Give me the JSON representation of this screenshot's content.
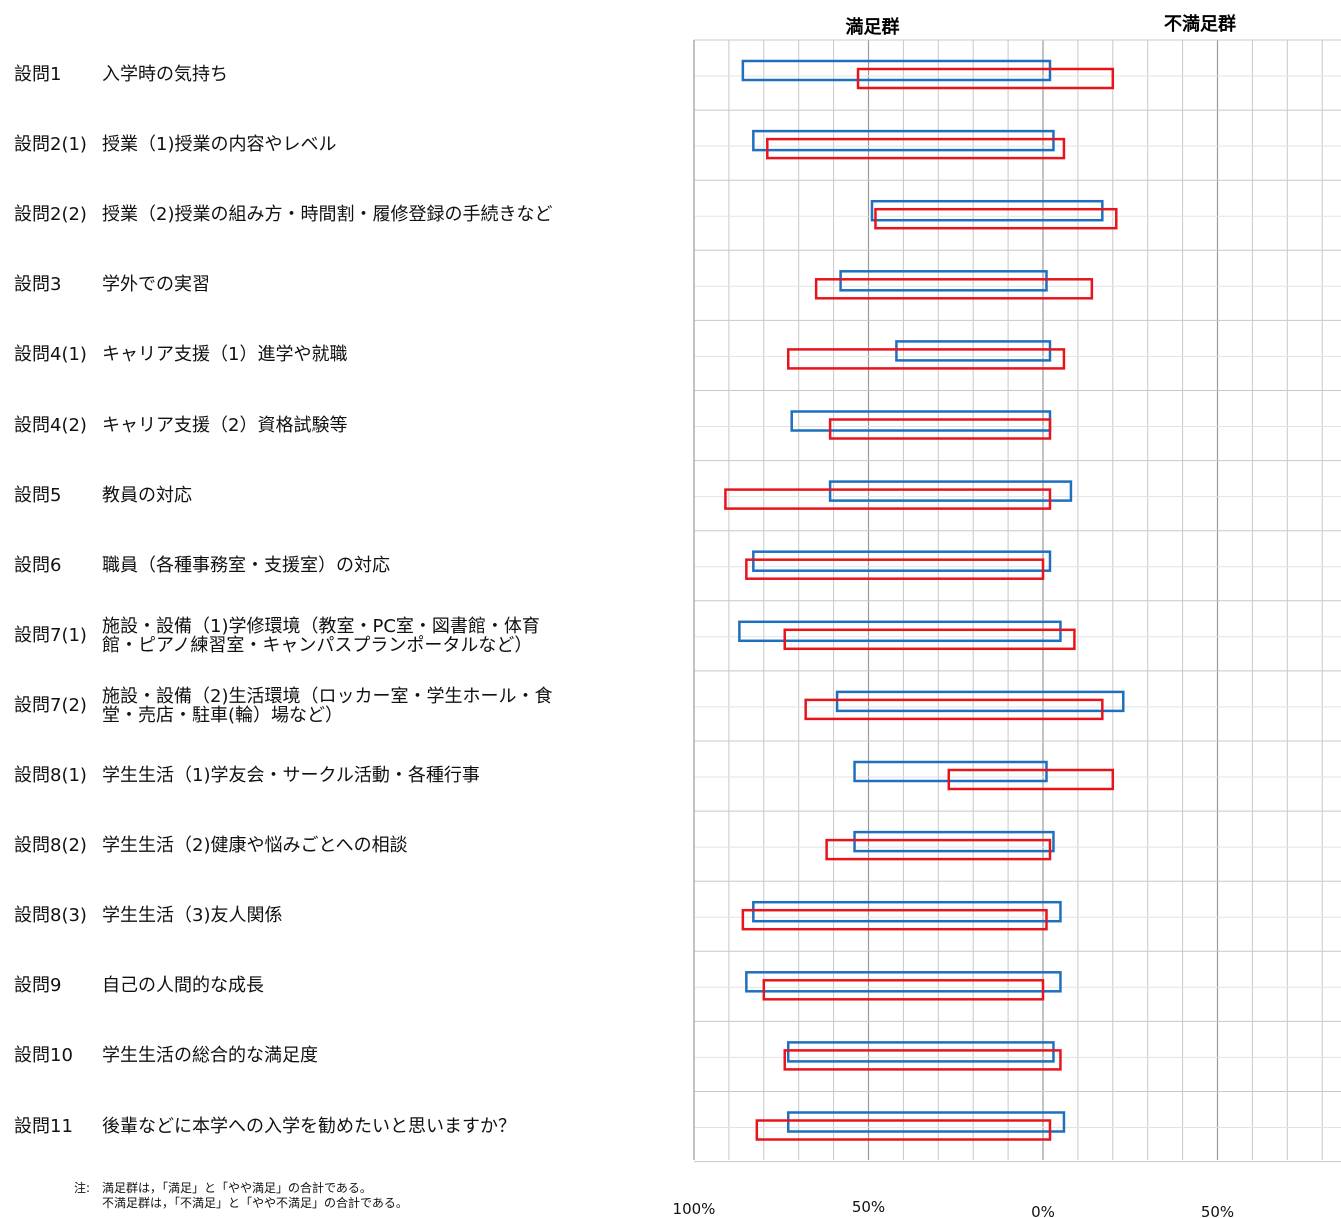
{
  "questions": [
    {
      "id": "設問1",
      "text": "入学時の気持ち"
    },
    {
      "id": "設問2(1)",
      "text": "授業（1)授業の内容やレベル"
    },
    {
      "id": "設問2(2)",
      "text": "授業（2)授業の組み方・時間割・履修登録の手続きなど"
    },
    {
      "id": "設問3",
      "text": "学外での実習"
    },
    {
      "id": "設問4(1)",
      "text": "キャリア支援（1）進学や就職"
    },
    {
      "id": "設問4(2)",
      "text": "キャリア支援（2）資格試験等"
    },
    {
      "id": "設問5",
      "text": "教員の対応"
    },
    {
      "id": "設問6",
      "text": "職員（各種事務室・支援室）の対応"
    },
    {
      "id": "設問7(1)",
      "text": "施設・設備（1)学修環境（教室・PC室・図書館・体育\n館・ピアノ練習室・キャンパスプランポータルなど）"
    },
    {
      "id": "設問7(2)",
      "text": "施設・設備（2)生活環境（ロッカー室・学生ホール・食\n堂・売店・駐車(輪）場など）"
    },
    {
      "id": "設問8(1)",
      "text": "学生生活（1)学友会・サークル活動・各種行事"
    },
    {
      "id": "設問8(2)",
      "text": "学生生活（2)健康や悩みごとへの相談"
    },
    {
      "id": "設問8(3)",
      "text": "学生生活（3)友人関係"
    },
    {
      "id": "設問9",
      "text": "自己の人間的な成長"
    },
    {
      "id": "設問10",
      "text": "学生生活の総合的な満足度"
    },
    {
      "id": "設問11",
      "text": "後輩などに本学への入学を勧めたいと思いますか？"
    }
  ],
  "note": {
    "label": "注:",
    "lines": "満足群は，「満足」と「やや満足」の合計である。\n不満足群は，「不満足」と「やや不満足」の合計である。"
  },
  "colors": {
    "blue": "#1f6fbf",
    "red": "#e8141c",
    "grid": "#c8c8c8",
    "axis": "#9a9a9a"
  },
  "chart_data": {
    "type": "bar",
    "orientation": "horizontal",
    "diverging": true,
    "headers": {
      "left": "満足群",
      "right": "不満足群"
    },
    "x_ticks": [
      "100%",
      "50%",
      "0%",
      "50%",
      "100%"
    ],
    "xlim": [
      -100,
      100
    ],
    "series": [
      {
        "color": "#1f6fbf",
        "satisfied": [
          86,
          83,
          49,
          58,
          42,
          72,
          61,
          83,
          87,
          59,
          54,
          54,
          83,
          85,
          73,
          73
        ],
        "dissatisfied": [
          2,
          3,
          17,
          1,
          2,
          2,
          8,
          2,
          5,
          23,
          1,
          3,
          5,
          5,
          3,
          6
        ]
      },
      {
        "color": "#e8141c",
        "satisfied": [
          53,
          79,
          48,
          65,
          73,
          61,
          91,
          85,
          74,
          68,
          27,
          62,
          86,
          80,
          74,
          82
        ],
        "dissatisfied": [
          20,
          6,
          21,
          14,
          6,
          2,
          2,
          0,
          9,
          17,
          20,
          2,
          1,
          0,
          5,
          2
        ]
      }
    ]
  }
}
